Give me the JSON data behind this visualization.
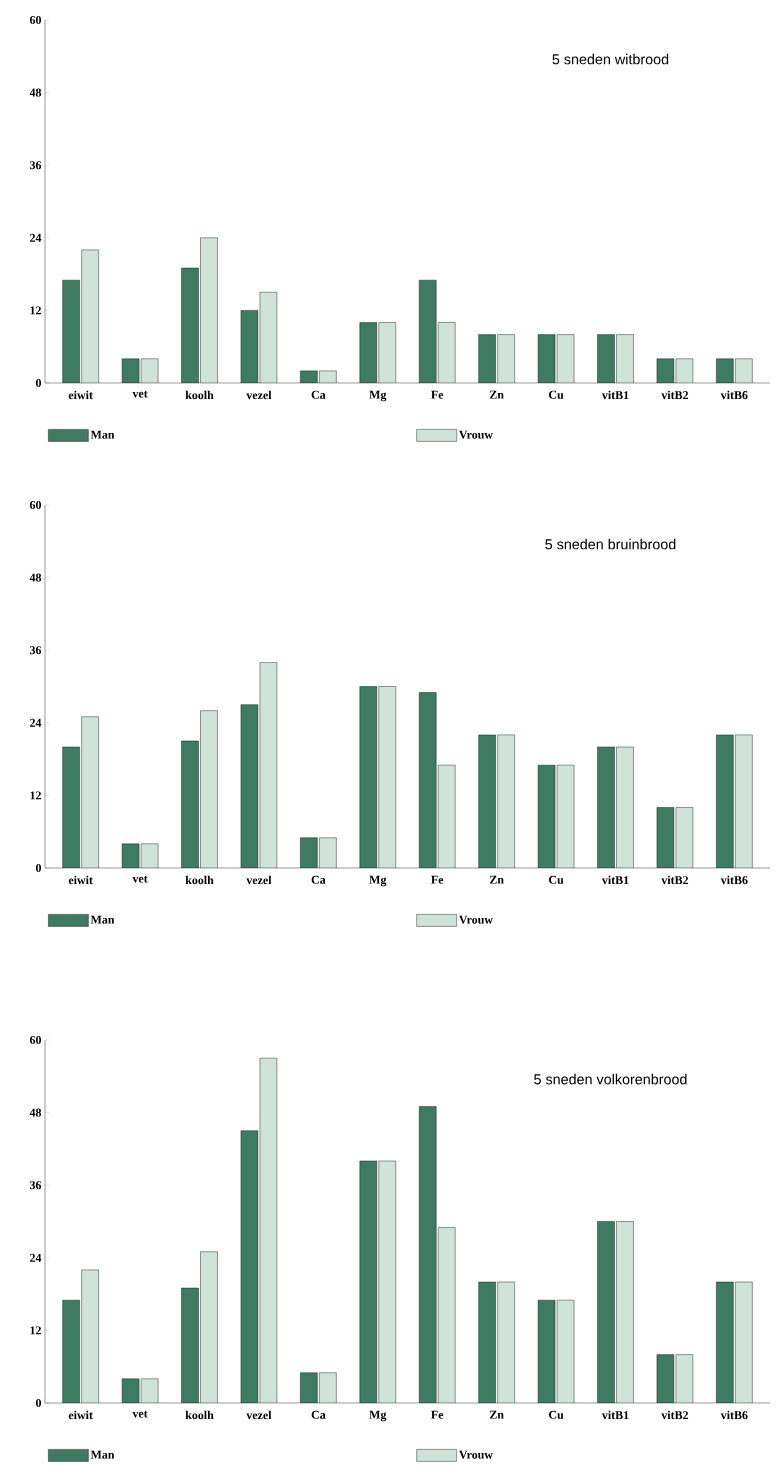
{
  "chart_data": [
    {
      "type": "bar",
      "title": "5 sneden witbrood",
      "categories": [
        "eiwit",
        "vet",
        "koolh",
        "vezel",
        "Ca",
        "Mg",
        "Fe",
        "Zn",
        "Cu",
        "vitB1",
        "vitB2",
        "vitB6"
      ],
      "ylim": [
        0,
        60
      ],
      "yticks": [
        0,
        12,
        24,
        36,
        48,
        60
      ],
      "legend": "bottom",
      "series": [
        {
          "name": "Man",
          "color": "#3f7a63",
          "values": [
            17,
            4,
            19,
            12,
            2,
            10,
            17,
            8,
            8,
            8,
            4,
            4
          ]
        },
        {
          "name": "Vrouw",
          "color": "#cfe3d8",
          "values": [
            22,
            4,
            24,
            15,
            2,
            10,
            10,
            8,
            8,
            8,
            4,
            4
          ]
        }
      ]
    },
    {
      "type": "bar",
      "title": "5 sneden bruinbrood",
      "categories": [
        "eiwit",
        "vet",
        "koolh",
        "vezel",
        "Ca",
        "Mg",
        "Fe",
        "Zn",
        "Cu",
        "vitB1",
        "vitB2",
        "vitB6"
      ],
      "ylim": [
        0,
        60
      ],
      "yticks": [
        0,
        12,
        24,
        36,
        48,
        60
      ],
      "legend": "bottom",
      "series": [
        {
          "name": "Man",
          "color": "#3f7a63",
          "values": [
            20,
            4,
            21,
            27,
            5,
            30,
            29,
            22,
            17,
            20,
            10,
            22
          ]
        },
        {
          "name": "Vrouw",
          "color": "#cfe3d8",
          "values": [
            25,
            4,
            26,
            34,
            5,
            30,
            17,
            22,
            17,
            20,
            10,
            22
          ]
        }
      ]
    },
    {
      "type": "bar",
      "title": "5 sneden volkorenbrood",
      "categories": [
        "eiwit",
        "vet",
        "koolh",
        "vezel",
        "Ca",
        "Mg",
        "Fe",
        "Zn",
        "Cu",
        "vitB1",
        "vitB2",
        "vitB6"
      ],
      "ylim": [
        0,
        60
      ],
      "yticks": [
        0,
        12,
        24,
        36,
        48,
        60
      ],
      "legend": "bottom",
      "series": [
        {
          "name": "Man",
          "color": "#3f7a63",
          "values": [
            17,
            4,
            19,
            45,
            5,
            40,
            49,
            20,
            17,
            30,
            8,
            20
          ]
        },
        {
          "name": "Vrouw",
          "color": "#cfe3d8",
          "values": [
            22,
            4,
            25,
            57,
            5,
            40,
            29,
            20,
            17,
            30,
            8,
            20
          ]
        }
      ]
    }
  ]
}
